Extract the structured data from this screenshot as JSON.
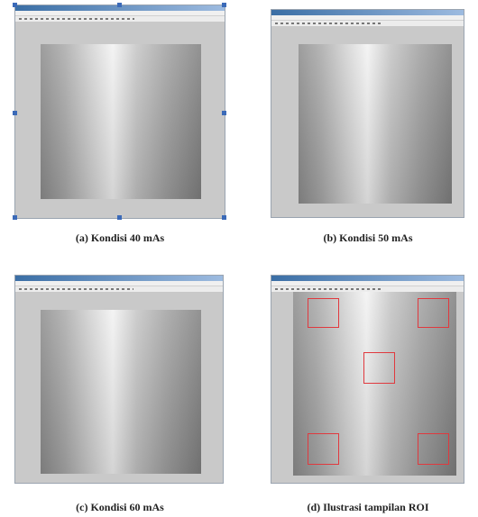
{
  "panels": [
    {
      "caption": "(a) Kondisi 40 mAs"
    },
    {
      "caption": "(b) Kondisi 50 mAs"
    },
    {
      "caption": "(c) Kondisi 60 mAs"
    },
    {
      "caption": "(d) Ilustrasi tampilan ROI"
    }
  ]
}
